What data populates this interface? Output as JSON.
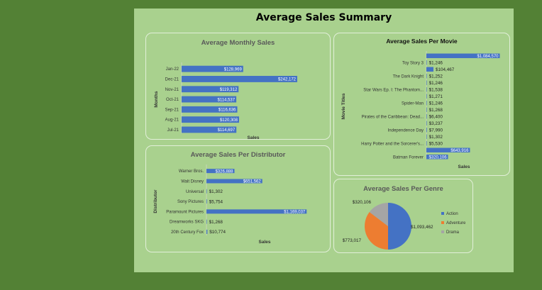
{
  "title": "Average Sales Summary",
  "colors": {
    "background": "#538135",
    "dashboard": "#a9d18e",
    "panel_border": "#e2efd9",
    "bar": "#4472c4",
    "action": "#4472c4",
    "adventure": "#ed7d31",
    "drama": "#a5a5a5"
  },
  "chart_data": [
    {
      "type": "bar",
      "orientation": "horizontal",
      "title": "Average Monthly Sales",
      "xlabel": "Sales",
      "ylabel": "Months",
      "categories": [
        "Jan-22",
        "Dec-21",
        "Nov-21",
        "Oct-21",
        "Sep-21",
        "Aug-21",
        "Jul-21"
      ],
      "values": [
        128969,
        242172,
        119312,
        114537,
        116636,
        120308,
        114697
      ],
      "value_labels": [
        "$128,969",
        "$242,172",
        "$119,312",
        "$114,537",
        "$116,636",
        "$120,308",
        "$114,697"
      ],
      "xlim": [
        0,
        260000
      ]
    },
    {
      "type": "bar",
      "orientation": "horizontal",
      "title": "Average Sales Per Movie",
      "xlabel": "Sales",
      "ylabel": "Movie Titles",
      "categories": [
        "",
        "Toy Story 3",
        "",
        "The Dark Knight",
        "",
        "Star Wars Ep. I: The Phantom...",
        "",
        "Spider-Man",
        "",
        "Pirates of the Caribbean: Dead...",
        "",
        "Independence Day",
        "",
        "Harry Potter and the Sorcerer's...",
        "",
        "Batman Forever"
      ],
      "values": [
        1084570,
        1246,
        104467,
        1252,
        1246,
        1538,
        1271,
        1246,
        1268,
        6400,
        3237,
        7990,
        1302,
        5530,
        643916,
        320106
      ],
      "value_labels": [
        "$1,084,570",
        "$1,246",
        "$104,467",
        "$1,252",
        "$1,246",
        "$1,538",
        "$1,271",
        "$1,246",
        "$1,268",
        "$6,400",
        "$3,237",
        "$7,990",
        "$1,302",
        "$5,530",
        "$643,916",
        "$320,106"
      ],
      "xlim": [
        0,
        1100000
      ]
    },
    {
      "type": "bar",
      "orientation": "horizontal",
      "title": "Average Sales Per Distributor",
      "xlabel": "Sales",
      "ylabel": "Distributor",
      "categories": [
        "Warner Bros.",
        "Walt Disney",
        "Universal",
        "Sony Pictures",
        "Paramount Pictures",
        "Dreamworks SKG",
        "20th Century Fox"
      ],
      "values": [
        326888,
        651562,
        1302,
        5754,
        1169037,
        1268,
        10774
      ],
      "value_labels": [
        "$326,888",
        "$651,562",
        "$1,302",
        "$5,754",
        "$1,169,037",
        "$1,268",
        "$10,774"
      ],
      "xlim": [
        0,
        1200000
      ]
    },
    {
      "type": "pie",
      "title": "Average Sales Per Genre",
      "categories": [
        "Action",
        "Adventure",
        "Drama"
      ],
      "values": [
        1093462,
        773017,
        320106
      ],
      "value_labels": [
        "$1,093,462",
        "$773,017",
        "$320,106"
      ],
      "legend": "right"
    }
  ]
}
